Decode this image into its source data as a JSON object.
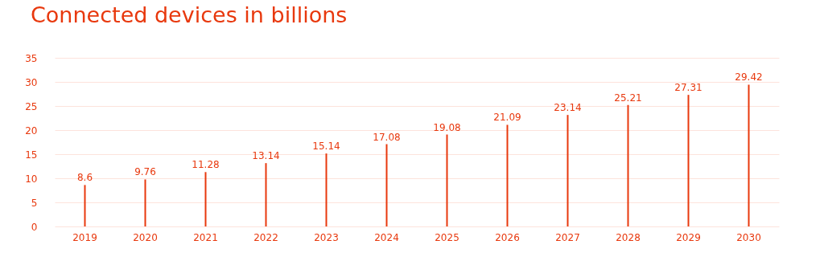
{
  "chart_data": {
    "type": "bar",
    "title": "Connected devices in billions",
    "categories": [
      "2019",
      "2020",
      "2021",
      "2022",
      "2023",
      "2024",
      "2025",
      "2026",
      "2027",
      "2028",
      "2029",
      "2030"
    ],
    "values": [
      8.6,
      9.76,
      11.28,
      13.14,
      15.14,
      17.08,
      19.08,
      21.09,
      23.14,
      25.21,
      27.31,
      29.42
    ],
    "color": "#e8380d",
    "ylim": [
      0,
      35
    ],
    "yticks": [
      0,
      5,
      10,
      15,
      20,
      25,
      30,
      35
    ],
    "grid": "y",
    "data_labels": true
  }
}
